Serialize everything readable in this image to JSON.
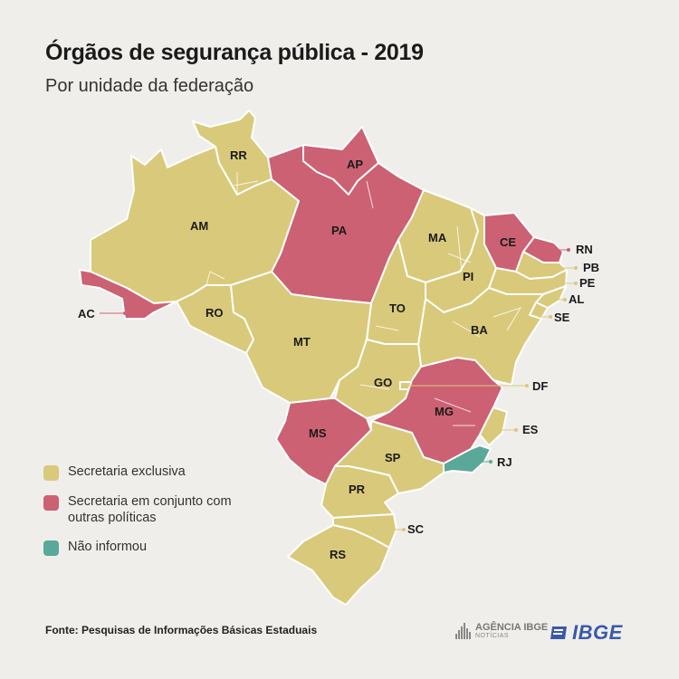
{
  "header": {
    "title": "Órgãos de segurança pública - 2019",
    "subtitle": "Por unidade da federação"
  },
  "colors": {
    "exclusiva": "#d9c97a",
    "conjunto": "#cc6173",
    "nao_informou": "#5aa897",
    "background": "#efeeeb"
  },
  "states": [
    {
      "uf": "RR",
      "category": "exclusiva"
    },
    {
      "uf": "AM",
      "category": "exclusiva"
    },
    {
      "uf": "AP",
      "category": "conjunto"
    },
    {
      "uf": "PA",
      "category": "conjunto"
    },
    {
      "uf": "MA",
      "category": "exclusiva"
    },
    {
      "uf": "CE",
      "category": "conjunto"
    },
    {
      "uf": "RN",
      "category": "conjunto"
    },
    {
      "uf": "PB",
      "category": "exclusiva"
    },
    {
      "uf": "PE",
      "category": "exclusiva"
    },
    {
      "uf": "AL",
      "category": "exclusiva"
    },
    {
      "uf": "SE",
      "category": "exclusiva"
    },
    {
      "uf": "PI",
      "category": "exclusiva"
    },
    {
      "uf": "AC",
      "category": "conjunto"
    },
    {
      "uf": "RO",
      "category": "exclusiva"
    },
    {
      "uf": "TO",
      "category": "exclusiva"
    },
    {
      "uf": "BA",
      "category": "exclusiva"
    },
    {
      "uf": "MT",
      "category": "exclusiva"
    },
    {
      "uf": "GO",
      "category": "exclusiva"
    },
    {
      "uf": "DF",
      "category": "exclusiva"
    },
    {
      "uf": "MG",
      "category": "conjunto"
    },
    {
      "uf": "ES",
      "category": "exclusiva"
    },
    {
      "uf": "MS",
      "category": "conjunto"
    },
    {
      "uf": "SP",
      "category": "exclusiva"
    },
    {
      "uf": "RJ",
      "category": "nao_informou"
    },
    {
      "uf": "PR",
      "category": "exclusiva"
    },
    {
      "uf": "SC",
      "category": "exclusiva"
    },
    {
      "uf": "RS",
      "category": "exclusiva"
    }
  ],
  "legend": [
    {
      "key": "exclusiva",
      "label": "Secretaria exclusiva"
    },
    {
      "key": "conjunto",
      "label": "Secretaria em conjunto com outras políticas"
    },
    {
      "key": "nao_informou",
      "label": "Não informou"
    }
  ],
  "footer": {
    "source": "Fonte: Pesquisas de Informações Básicas Estaduais",
    "agencia": "AGÊNCIA IBGE",
    "agencia_sub": "NOTÍCIAS",
    "ibge": "IBGE"
  }
}
